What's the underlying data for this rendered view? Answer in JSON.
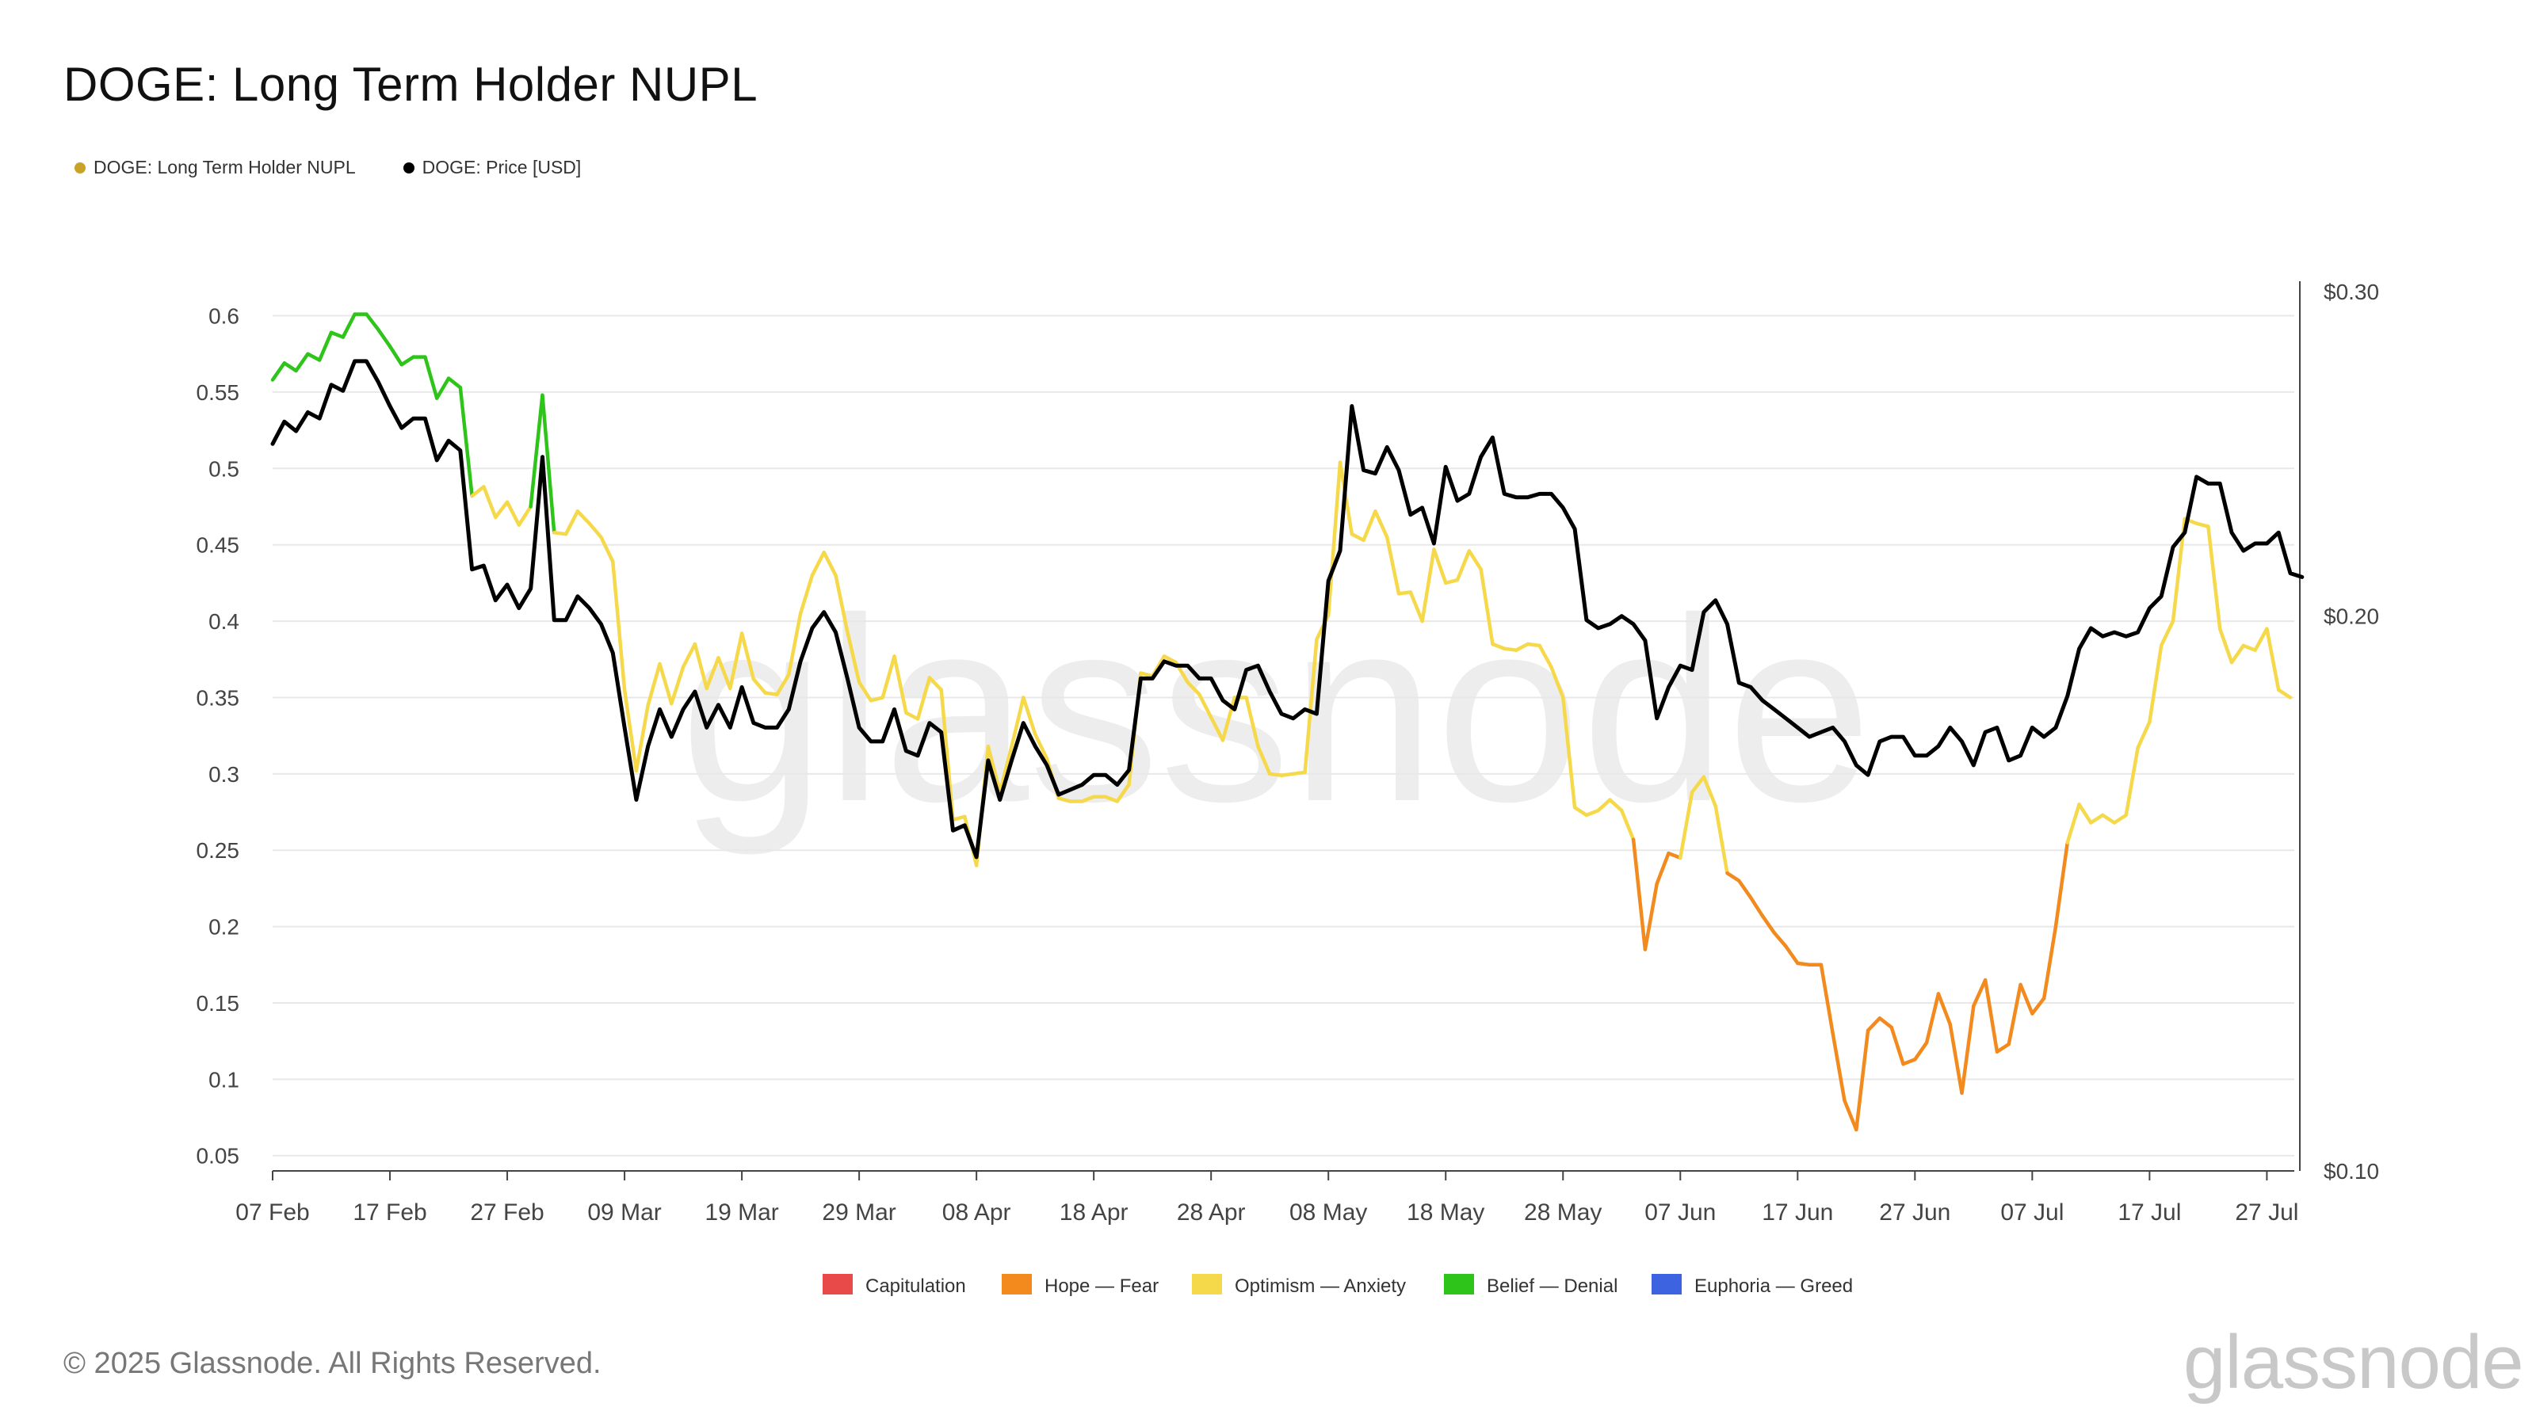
{
  "chart_data": {
    "type": "line",
    "title": "DOGE: Long Term Holder NUPL",
    "watermark": "glassnode",
    "copyright": "© 2025 Glassnode. All Rights Reserved.",
    "brand": "glassnode",
    "legend_top": [
      {
        "name": "DOGE: Long Term Holder NUPL",
        "color": "#c9a227"
      },
      {
        "name": "DOGE: Price [USD]",
        "color": "#000000"
      }
    ],
    "legend_bottom": [
      {
        "name": "Capitulation",
        "color": "#e84a4a"
      },
      {
        "name": "Hope — Fear",
        "color": "#f28a1e"
      },
      {
        "name": "Optimism — Anxiety",
        "color": "#f5d94a"
      },
      {
        "name": "Belief — Denial",
        "color": "#2ec41a"
      },
      {
        "name": "Euphoria — Greed",
        "color": "#3d63e0"
      }
    ],
    "x_start": "2025-02-07",
    "x_tick_labels": [
      "07 Feb",
      "17 Feb",
      "27 Feb",
      "09 Mar",
      "19 Mar",
      "29 Mar",
      "08 Apr",
      "18 Apr",
      "28 Apr",
      "08 May",
      "18 May",
      "28 May",
      "07 Jun",
      "17 Jun",
      "27 Jun",
      "07 Jul",
      "17 Jul",
      "27 Jul"
    ],
    "y_left_ticks": [
      0.05,
      0.1,
      0.15,
      0.2,
      0.25,
      0.3,
      0.35,
      0.4,
      0.45,
      0.5,
      0.55,
      0.6
    ],
    "y_left_tick_labels": [
      "0.05",
      "0.1",
      "0.15",
      "0.2",
      "0.25",
      "0.3",
      "0.35",
      "0.4",
      "0.45",
      "0.5",
      "0.55",
      "0.6"
    ],
    "y_left_range": [
      0.04,
      0.62
    ],
    "y_right_ticks": [
      0.1,
      0.2,
      0.3
    ],
    "y_right_tick_labels": [
      "$0.10",
      "$0.20",
      "$0.30"
    ],
    "y_right_range": [
      0.1,
      0.3
    ],
    "y_right_scale": "log",
    "zone_thresholds": [
      0,
      0.25,
      0.5,
      0.75
    ],
    "series": [
      {
        "name": "DOGE: Long Term Holder NUPL",
        "axis": "left",
        "values": [
          0.558,
          0.569,
          0.564,
          0.575,
          0.571,
          0.589,
          0.586,
          0.601,
          0.601,
          0.591,
          0.58,
          0.568,
          0.573,
          0.573,
          0.546,
          0.559,
          0.553,
          0.482,
          0.488,
          0.468,
          0.478,
          0.463,
          0.475,
          0.548,
          0.458,
          0.457,
          0.472,
          0.464,
          0.455,
          0.439,
          0.355,
          0.302,
          0.345,
          0.372,
          0.346,
          0.37,
          0.385,
          0.356,
          0.376,
          0.356,
          0.392,
          0.362,
          0.353,
          0.352,
          0.365,
          0.405,
          0.43,
          0.445,
          0.43,
          0.393,
          0.36,
          0.348,
          0.35,
          0.377,
          0.34,
          0.336,
          0.363,
          0.355,
          0.27,
          0.272,
          0.24,
          0.318,
          0.288,
          0.318,
          0.35,
          0.326,
          0.31,
          0.284,
          0.282,
          0.282,
          0.285,
          0.285,
          0.282,
          0.293,
          0.366,
          0.364,
          0.377,
          0.373,
          0.36,
          0.352,
          0.337,
          0.322,
          0.35,
          0.35,
          0.318,
          0.3,
          0.299,
          0.3,
          0.301,
          0.388,
          0.404,
          0.504,
          0.457,
          0.453,
          0.472,
          0.455,
          0.418,
          0.419,
          0.4,
          0.447,
          0.425,
          0.427,
          0.446,
          0.434,
          0.385,
          0.382,
          0.381,
          0.385,
          0.384,
          0.37,
          0.35,
          0.278,
          0.273,
          0.276,
          0.283,
          0.276,
          0.257,
          0.185,
          0.228,
          0.248,
          0.245,
          0.288,
          0.298,
          0.279,
          0.235,
          0.23,
          0.219,
          0.207,
          0.196,
          0.187,
          0.176,
          0.175,
          0.175,
          0.13,
          0.086,
          0.067,
          0.132,
          0.14,
          0.134,
          0.11,
          0.113,
          0.124,
          0.156,
          0.136,
          0.091,
          0.148,
          0.165,
          0.118,
          0.123,
          0.162,
          0.143,
          0.153,
          0.2,
          0.255,
          0.28,
          0.268,
          0.273,
          0.268,
          0.273,
          0.317,
          0.334,
          0.384,
          0.4,
          0.467,
          0.464,
          0.462,
          0.395,
          0.373,
          0.384,
          0.381,
          0.395,
          0.355,
          0.35
        ]
      },
      {
        "name": "DOGE: Price [USD]",
        "axis": "right",
        "values": [
          0.248,
          0.255,
          0.252,
          0.258,
          0.256,
          0.267,
          0.265,
          0.275,
          0.275,
          0.268,
          0.26,
          0.253,
          0.256,
          0.256,
          0.243,
          0.249,
          0.246,
          0.212,
          0.213,
          0.204,
          0.208,
          0.202,
          0.207,
          0.244,
          0.199,
          0.199,
          0.205,
          0.202,
          0.198,
          0.191,
          0.174,
          0.159,
          0.17,
          0.178,
          0.172,
          0.178,
          0.182,
          0.174,
          0.179,
          0.174,
          0.183,
          0.175,
          0.174,
          0.174,
          0.178,
          0.189,
          0.197,
          0.201,
          0.196,
          0.185,
          0.174,
          0.171,
          0.171,
          0.178,
          0.169,
          0.168,
          0.175,
          0.173,
          0.153,
          0.154,
          0.148,
          0.167,
          0.159,
          0.167,
          0.175,
          0.17,
          0.166,
          0.16,
          0.161,
          0.162,
          0.164,
          0.164,
          0.162,
          0.165,
          0.185,
          0.185,
          0.189,
          0.188,
          0.188,
          0.185,
          0.185,
          0.18,
          0.178,
          0.187,
          0.188,
          0.182,
          0.177,
          0.176,
          0.178,
          0.177,
          0.209,
          0.217,
          0.26,
          0.24,
          0.239,
          0.247,
          0.24,
          0.227,
          0.229,
          0.219,
          0.241,
          0.231,
          0.233,
          0.244,
          0.25,
          0.233,
          0.232,
          0.232,
          0.233,
          0.233,
          0.229,
          0.223,
          0.199,
          0.197,
          0.198,
          0.2,
          0.198,
          0.194,
          0.176,
          0.183,
          0.188,
          0.187,
          0.201,
          0.204,
          0.198,
          0.184,
          0.183,
          0.18,
          0.178,
          0.176,
          0.174,
          0.172,
          0.173,
          0.174,
          0.171,
          0.166,
          0.164,
          0.171,
          0.172,
          0.172,
          0.168,
          0.168,
          0.17,
          0.174,
          0.171,
          0.166,
          0.173,
          0.174,
          0.167,
          0.168,
          0.174,
          0.172,
          0.174,
          0.181,
          0.192,
          0.197,
          0.195,
          0.196,
          0.195,
          0.196,
          0.202,
          0.205,
          0.218,
          0.222,
          0.238,
          0.236,
          0.236,
          0.222,
          0.217,
          0.219,
          0.219,
          0.222,
          0.211,
          0.21
        ]
      }
    ]
  }
}
